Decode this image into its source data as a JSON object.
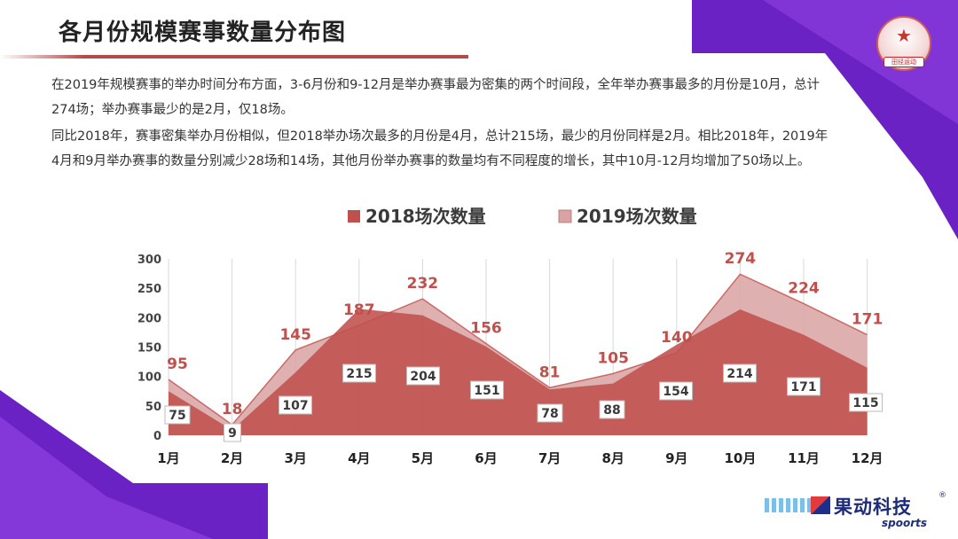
{
  "header": {
    "title": "各月份规模赛事数量分布图",
    "badge_text": "田径运动"
  },
  "description": {
    "p1": "在2019年规模赛事的举办时间分布方面，3-6月份和9-12月是举办赛事最为密集的两个时间段，全年举办赛事最多的月份是10月，总计274场；举办赛事最少的是2月，仅18场。",
    "p2": "同比2018年，赛事密集举办月份相似，但2018举办场次最多的月份是4月，总计215场，最少的月份同样是2月。相比2018年，2019年4月和9月举办赛事的数量分别减少28场和14场，其他月份举办赛事的数量均有不同程度的增长，其中10月-12月均增加了50场以上。"
  },
  "brand": {
    "name": "果动科技",
    "sub": "spoorts",
    "reg": "®"
  },
  "colors": {
    "series2018": "#c0504d",
    "series2019": "#d8a3a2",
    "accent_purple": "#6b22c4"
  },
  "chart_data": {
    "type": "area",
    "categories": [
      "1月",
      "2月",
      "3月",
      "4月",
      "5月",
      "6月",
      "7月",
      "8月",
      "9月",
      "10月",
      "11月",
      "12月"
    ],
    "series": [
      {
        "name": "2018场次数量",
        "values": [
          75,
          9,
          107,
          215,
          204,
          151,
          78,
          88,
          154,
          214,
          171,
          115
        ]
      },
      {
        "name": "2019场次数量",
        "values": [
          95,
          18,
          145,
          187,
          232,
          156,
          81,
          105,
          140,
          274,
          224,
          171
        ]
      }
    ],
    "yticks": [
      "0",
      "50",
      "100",
      "150",
      "200",
      "250",
      "300"
    ],
    "ylim": [
      0,
      300
    ],
    "legend_position": "top",
    "grid": "vertical"
  }
}
